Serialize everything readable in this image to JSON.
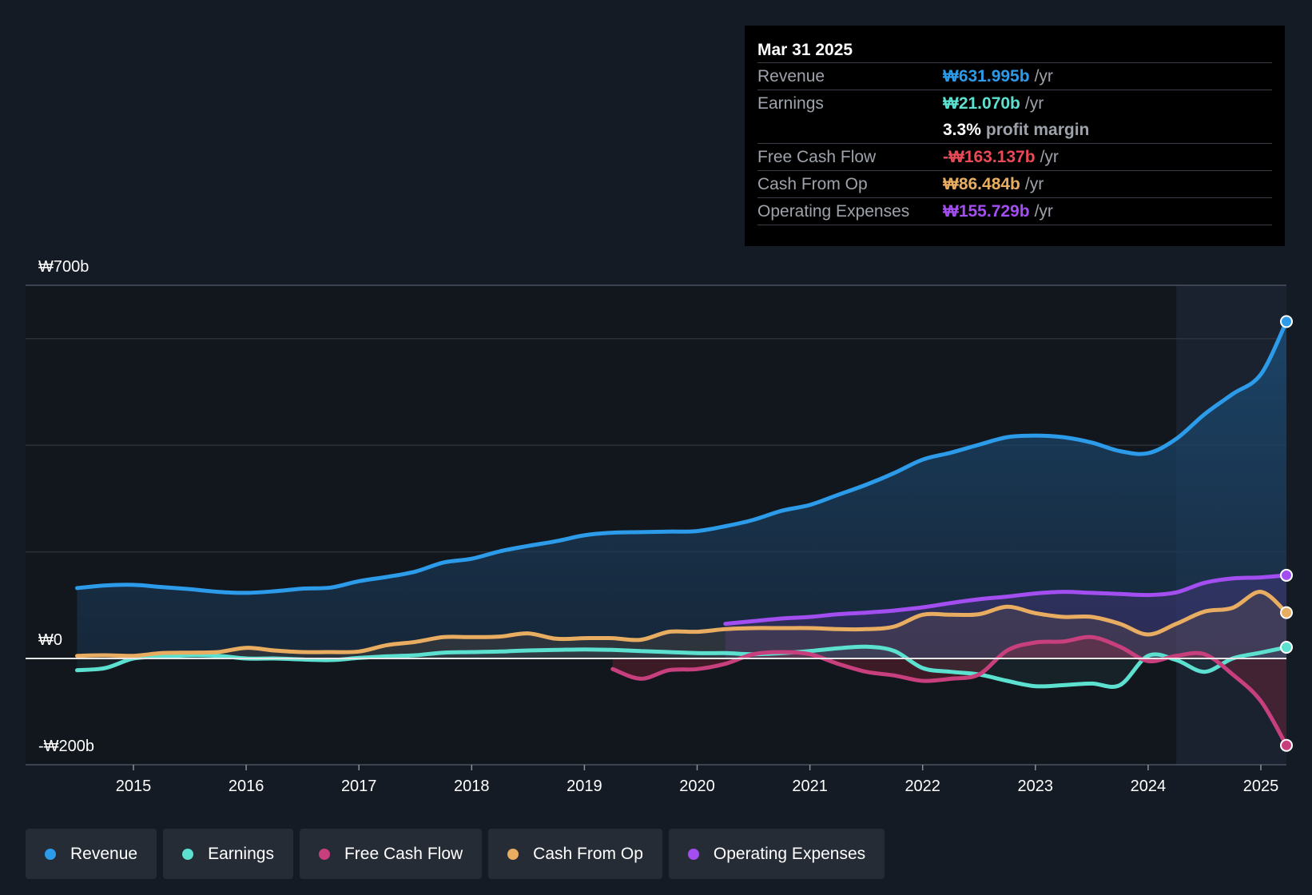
{
  "tooltip": {
    "date": "Mar 31 2025",
    "rows": [
      {
        "label": "Revenue",
        "value": "₩631.995b",
        "unit": "/yr",
        "color": "#2b9bea"
      },
      {
        "label": "Earnings",
        "value": "₩21.070b",
        "unit": "/yr",
        "color": "#5ce1d0"
      },
      {
        "label": "",
        "value": "3.3%",
        "unit": "profit margin",
        "color": "#ffffff"
      },
      {
        "label": "Free Cash Flow",
        "value": "-₩163.137b",
        "unit": "/yr",
        "color": "#ea4a57"
      },
      {
        "label": "Cash From Op",
        "value": "₩86.484b",
        "unit": "/yr",
        "color": "#e9ad62"
      },
      {
        "label": "Operating Expenses",
        "value": "₩155.729b",
        "unit": "/yr",
        "color": "#a34ef0"
      }
    ]
  },
  "legend": [
    {
      "label": "Revenue",
      "color": "#2b9bea"
    },
    {
      "label": "Earnings",
      "color": "#5ce1d0"
    },
    {
      "label": "Free Cash Flow",
      "color": "#c83f7d"
    },
    {
      "label": "Cash From Op",
      "color": "#e9ad62"
    },
    {
      "label": "Operating Expenses",
      "color": "#a34ef0"
    }
  ],
  "chart_data": {
    "type": "line",
    "title": "",
    "xlabel": "",
    "ylabel": "",
    "y_axis_labels": {
      "top": "₩700b",
      "zero": "₩0",
      "bottom": "-₩200b"
    },
    "ylim": [
      -200,
      700
    ],
    "xlim": [
      2014.5,
      2025.25
    ],
    "x_ticks": [
      "2015",
      "2016",
      "2017",
      "2018",
      "2019",
      "2020",
      "2021",
      "2022",
      "2023",
      "2024",
      "2025"
    ],
    "forecast_region_start": 2024.25,
    "series": [
      {
        "name": "Revenue",
        "color": "#2b9bea",
        "x": [
          2014.5,
          2014.75,
          2015.0,
          2015.25,
          2015.5,
          2015.75,
          2016.0,
          2016.25,
          2016.5,
          2016.75,
          2017.0,
          2017.25,
          2017.5,
          2017.75,
          2018.0,
          2018.25,
          2018.5,
          2018.75,
          2019.0,
          2019.25,
          2019.5,
          2019.75,
          2020.0,
          2020.25,
          2020.5,
          2020.75,
          2021.0,
          2021.25,
          2021.5,
          2021.75,
          2022.0,
          2022.25,
          2022.5,
          2022.75,
          2023.0,
          2023.25,
          2023.5,
          2023.75,
          2024.0,
          2024.25,
          2024.5,
          2024.75,
          2025.0,
          2025.25
        ],
        "values": [
          132,
          137,
          138,
          134,
          130,
          125,
          123,
          126,
          131,
          133,
          145,
          153,
          163,
          180,
          187,
          201,
          211,
          220,
          231,
          236,
          237,
          238,
          239,
          248,
          260,
          277,
          288,
          307,
          326,
          348,
          373,
          386,
          401,
          415,
          418,
          415,
          405,
          389,
          385,
          412,
          458,
          496,
          533,
          632
        ]
      },
      {
        "name": "Earnings",
        "color": "#5ce1d0",
        "x": [
          2014.5,
          2014.75,
          2015.0,
          2015.25,
          2015.5,
          2015.75,
          2016.0,
          2016.25,
          2016.5,
          2016.75,
          2017.0,
          2017.25,
          2017.5,
          2017.75,
          2018.0,
          2018.25,
          2018.5,
          2018.75,
          2019.0,
          2019.25,
          2019.5,
          2019.75,
          2020.0,
          2020.25,
          2020.5,
          2020.75,
          2021.0,
          2021.25,
          2021.5,
          2021.75,
          2022.0,
          2022.25,
          2022.5,
          2022.75,
          2023.0,
          2023.25,
          2023.5,
          2023.75,
          2024.0,
          2024.25,
          2024.5,
          2024.75,
          2025.0,
          2025.25
        ],
        "values": [
          -22,
          -18,
          0,
          3,
          6,
          5,
          0,
          0,
          -2,
          -3,
          1,
          4,
          6,
          11,
          12,
          13,
          15,
          16,
          17,
          16,
          14,
          12,
          10,
          10,
          8,
          10,
          14,
          19,
          22,
          14,
          -18,
          -25,
          -30,
          -42,
          -52,
          -50,
          -47,
          -50,
          5,
          -3,
          -25,
          0,
          11,
          21
        ]
      },
      {
        "name": "Free Cash Flow",
        "color": "#c83f7d",
        "x": [
          2019.25,
          2019.5,
          2019.75,
          2020.0,
          2020.25,
          2020.5,
          2020.75,
          2021.0,
          2021.25,
          2021.5,
          2021.75,
          2022.0,
          2022.25,
          2022.5,
          2022.75,
          2023.0,
          2023.25,
          2023.5,
          2023.75,
          2024.0,
          2024.25,
          2024.5,
          2024.75,
          2025.0,
          2025.25
        ],
        "values": [
          -20,
          -38,
          -22,
          -20,
          -10,
          8,
          12,
          8,
          -10,
          -25,
          -32,
          -42,
          -38,
          -30,
          15,
          30,
          32,
          40,
          22,
          -5,
          5,
          8,
          -30,
          -80,
          -163
        ]
      },
      {
        "name": "Cash From Op",
        "color": "#e9ad62",
        "x": [
          2014.5,
          2014.75,
          2015.0,
          2015.25,
          2015.5,
          2015.75,
          2016.0,
          2016.25,
          2016.5,
          2016.75,
          2017.0,
          2017.25,
          2017.5,
          2017.75,
          2018.0,
          2018.25,
          2018.5,
          2018.75,
          2019.0,
          2019.25,
          2019.5,
          2019.75,
          2020.0,
          2020.25,
          2020.5,
          2020.75,
          2021.0,
          2021.25,
          2021.5,
          2021.75,
          2022.0,
          2022.25,
          2022.5,
          2022.75,
          2023.0,
          2023.25,
          2023.5,
          2023.75,
          2024.0,
          2024.25,
          2024.5,
          2024.75,
          2025.0,
          2025.25
        ],
        "values": [
          5,
          6,
          5,
          10,
          11,
          12,
          20,
          15,
          12,
          12,
          13,
          25,
          31,
          40,
          40,
          41,
          47,
          37,
          38,
          38,
          35,
          50,
          50,
          55,
          57,
          57,
          57,
          55,
          55,
          60,
          82,
          82,
          83,
          97,
          85,
          78,
          78,
          65,
          45,
          65,
          88,
          95,
          125,
          86
        ]
      },
      {
        "name": "Operating Expenses",
        "color": "#a34ef0",
        "x": [
          2020.25,
          2020.5,
          2020.75,
          2021.0,
          2021.25,
          2021.5,
          2021.75,
          2022.0,
          2022.25,
          2022.5,
          2022.75,
          2023.0,
          2023.25,
          2023.5,
          2023.75,
          2024.0,
          2024.25,
          2024.5,
          2024.75,
          2025.0,
          2025.25
        ],
        "values": [
          65,
          70,
          75,
          78,
          83,
          86,
          90,
          96,
          104,
          111,
          116,
          122,
          125,
          123,
          121,
          119,
          124,
          142,
          150,
          152,
          156
        ]
      }
    ]
  }
}
